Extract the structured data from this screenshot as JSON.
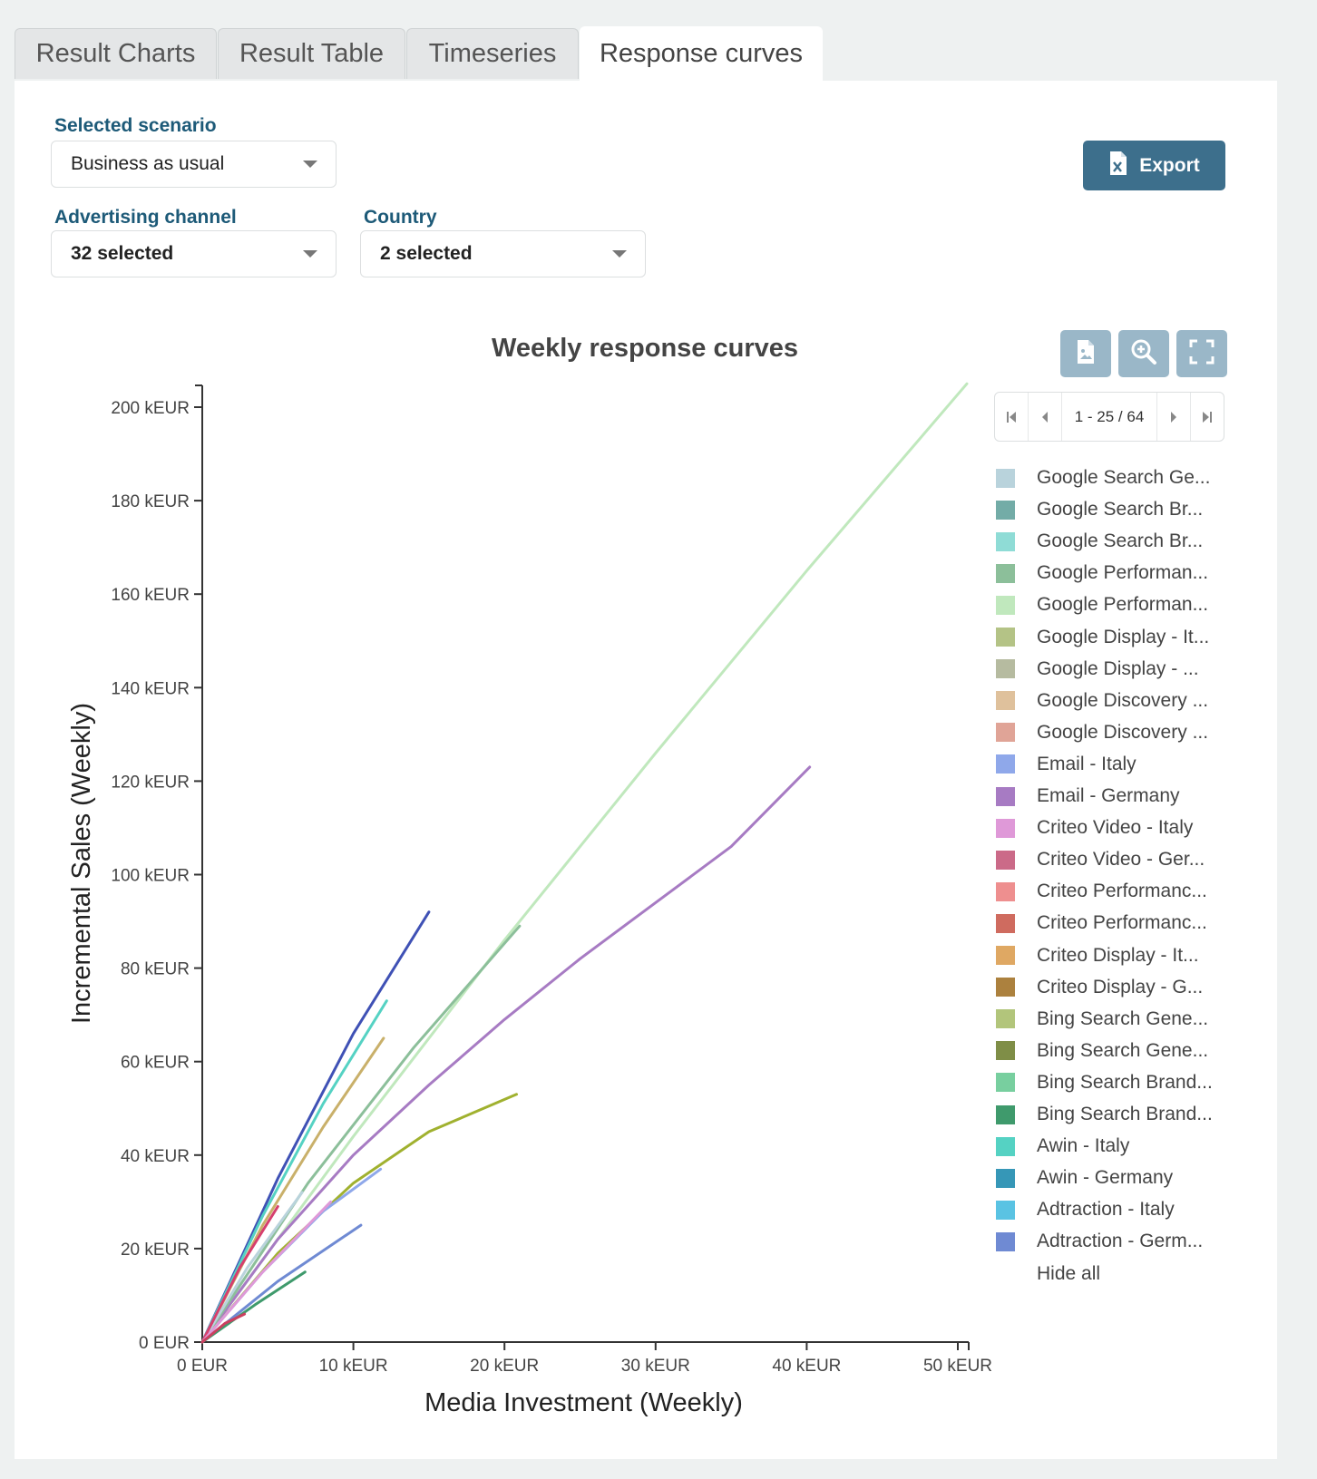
{
  "tabs": [
    {
      "label": "Result Charts",
      "active": false
    },
    {
      "label": "Result Table",
      "active": false
    },
    {
      "label": "Timeseries",
      "active": false
    },
    {
      "label": "Response curves",
      "active": true
    }
  ],
  "filters": {
    "scenario": {
      "label": "Selected scenario",
      "value": "Business as usual"
    },
    "channel": {
      "label": "Advertising channel",
      "value": "32 selected"
    },
    "country": {
      "label": "Country",
      "value": "2 selected"
    }
  },
  "export_label": "Export",
  "pager": {
    "text": "1 - 25 / 64"
  },
  "legend": {
    "items": [
      {
        "label": "Google Search Ge...",
        "color": "#b9d3dc"
      },
      {
        "label": "Google Search Br...",
        "color": "#73aca7"
      },
      {
        "label": "Google Search Br...",
        "color": "#8fdcd6"
      },
      {
        "label": "Google Performan...",
        "color": "#8cbf9a"
      },
      {
        "label": "Google Performan...",
        "color": "#c0e8bd"
      },
      {
        "label": "Google Display - It...",
        "color": "#b4c386"
      },
      {
        "label": "Google Display - ...",
        "color": "#b6bba0"
      },
      {
        "label": "Google Discovery ...",
        "color": "#dfc19c"
      },
      {
        "label": "Google Discovery ...",
        "color": "#e0a497"
      },
      {
        "label": "Email - Italy",
        "color": "#8fa8ea"
      },
      {
        "label": "Email - Germany",
        "color": "#a77bc3"
      },
      {
        "label": "Criteo Video - Italy",
        "color": "#df99d8"
      },
      {
        "label": "Criteo Video - Ger...",
        "color": "#cb6a88"
      },
      {
        "label": "Criteo Performanc...",
        "color": "#ee8f8f"
      },
      {
        "label": "Criteo Performanc...",
        "color": "#cf6b5f"
      },
      {
        "label": "Criteo Display - It...",
        "color": "#dfa863"
      },
      {
        "label": "Criteo Display - G...",
        "color": "#ac813e"
      },
      {
        "label": "Bing Search Gene...",
        "color": "#b2c57b"
      },
      {
        "label": "Bing Search Gene...",
        "color": "#7f8e47"
      },
      {
        "label": "Bing Search Brand...",
        "color": "#78cf9f"
      },
      {
        "label": "Bing Search Brand...",
        "color": "#3f9a6c"
      },
      {
        "label": "Awin - Italy",
        "color": "#55d2c3"
      },
      {
        "label": "Awin - Germany",
        "color": "#3697b7"
      },
      {
        "label": "Adtraction - Italy",
        "color": "#5ac3e3"
      },
      {
        "label": "Adtraction - Germ...",
        "color": "#6f8ad3"
      }
    ],
    "hide_all": "Hide all"
  },
  "chart_data": {
    "type": "line",
    "title": "Weekly response curves",
    "xlabel": "Media Investment (Weekly)",
    "ylabel": "Incremental Sales (Weekly)",
    "xlim": [
      0,
      50
    ],
    "ylim": [
      0,
      200
    ],
    "x_ticks": [
      "0 EUR",
      "10 kEUR",
      "20 kEUR",
      "30 kEUR",
      "40 kEUR",
      "50 kEUR"
    ],
    "y_ticks": [
      "0 EUR",
      "20 kEUR",
      "40 kEUR",
      "60 kEUR",
      "80 kEUR",
      "100 kEUR",
      "120 kEUR",
      "140 kEUR",
      "160 kEUR",
      "180 kEUR",
      "200 kEUR"
    ],
    "series": [
      {
        "name": "Google Performan...",
        "color": "#c0e8bd",
        "x": [
          0,
          10,
          20,
          30,
          40,
          50.6
        ],
        "y": [
          0,
          44,
          86,
          126,
          165,
          205
        ]
      },
      {
        "name": "Email - Germany",
        "color": "#a77bc3",
        "x": [
          0,
          5,
          10,
          15,
          20,
          25,
          30,
          35,
          40.2
        ],
        "y": [
          0,
          22,
          40,
          55,
          69,
          82,
          94,
          106,
          123
        ]
      },
      {
        "name": "Adtraction - Germ...",
        "color": "#3f51b5",
        "x": [
          0,
          5,
          10,
          15
        ],
        "y": [
          0,
          35,
          66,
          92
        ]
      },
      {
        "name": "Awin - Italy",
        "color": "#55d2c3",
        "x": [
          0,
          4,
          8,
          12.2
        ],
        "y": [
          0,
          27,
          51,
          73
        ]
      },
      {
        "name": "Criteo Display - It...",
        "color": "#c9b06a",
        "x": [
          0,
          4,
          8,
          12
        ],
        "y": [
          0,
          25,
          46,
          65
        ]
      },
      {
        "name": "Google Performan...",
        "color": "#8cbf9a",
        "x": [
          0,
          7,
          14,
          21
        ],
        "y": [
          0,
          34,
          63,
          89
        ]
      },
      {
        "name": "Bing Search Gene...",
        "color": "#a0b12f",
        "x": [
          0,
          5,
          10,
          15,
          20.8
        ],
        "y": [
          0,
          19,
          34,
          45,
          53
        ]
      },
      {
        "name": "Email - Italy",
        "color": "#8fa8ea",
        "x": [
          0,
          4,
          8,
          11.8
        ],
        "y": [
          0,
          15,
          28,
          37
        ]
      },
      {
        "name": "Adtraction - Germ...",
        "color": "#6f8ad3",
        "x": [
          0,
          5,
          10.5
        ],
        "y": [
          0,
          13,
          25
        ]
      },
      {
        "name": "Google Search Ge...",
        "color": "#b9d3dc",
        "x": [
          0,
          3,
          6.6
        ],
        "y": [
          0,
          16,
          32
        ]
      },
      {
        "name": "Criteo Video - Ger...",
        "color": "#d63f6e",
        "x": [
          0,
          2.5,
          5
        ],
        "y": [
          0,
          16,
          29
        ]
      },
      {
        "name": "Criteo Video - Italy",
        "color": "#df99d8",
        "x": [
          0,
          4,
          8.5
        ],
        "y": [
          0,
          15,
          30
        ]
      },
      {
        "name": "Bing Search Brand...",
        "color": "#3f9a6c",
        "x": [
          0,
          3.5,
          6.8
        ],
        "y": [
          0,
          8,
          15
        ]
      },
      {
        "name": "Criteo Performanc...",
        "color": "#cb3f5f",
        "x": [
          0,
          1.5,
          2.8
        ],
        "y": [
          0,
          4,
          6
        ]
      }
    ]
  }
}
